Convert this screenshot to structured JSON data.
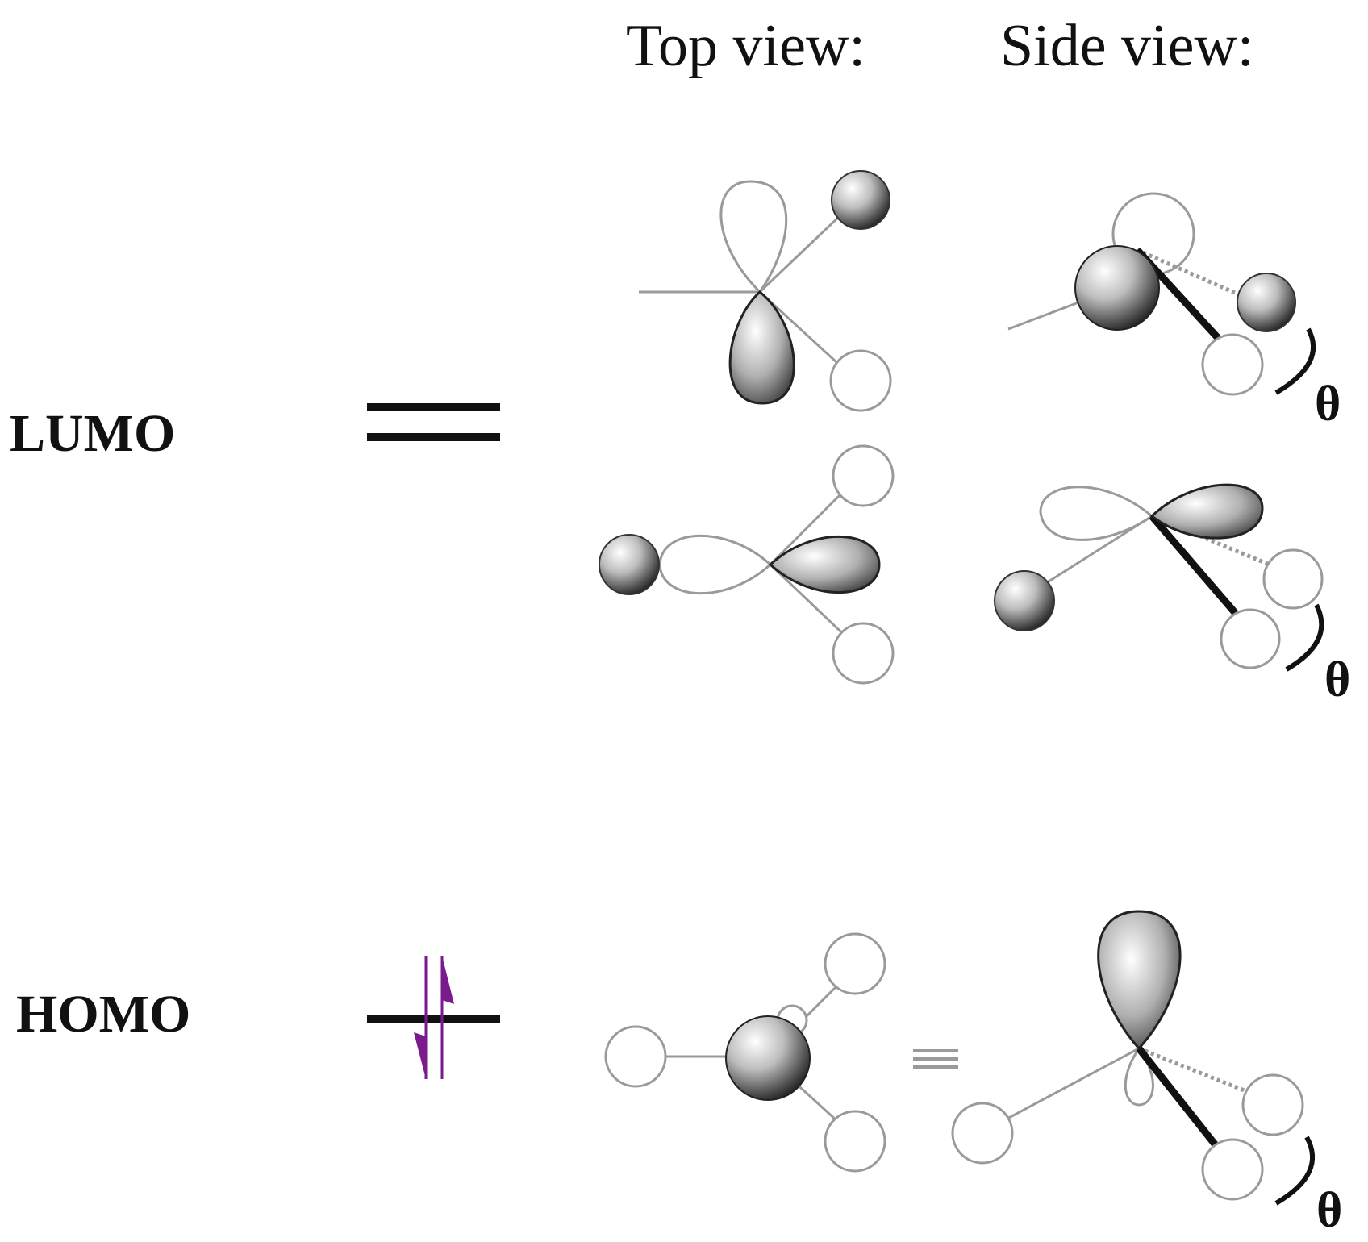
{
  "headers": {
    "top_view": "Top view:",
    "side_view": "Side view:"
  },
  "levels": {
    "lumo": "LUMO",
    "homo": "HOMO"
  },
  "angle_symbol": "θ",
  "colors": {
    "ink": "#111111",
    "outline": "#9a9a9a",
    "electron_arrow": "#7a1a8c"
  },
  "icons": {
    "electron_up": "up-arrow-icon",
    "electron_down": "down-arrow-icon"
  }
}
